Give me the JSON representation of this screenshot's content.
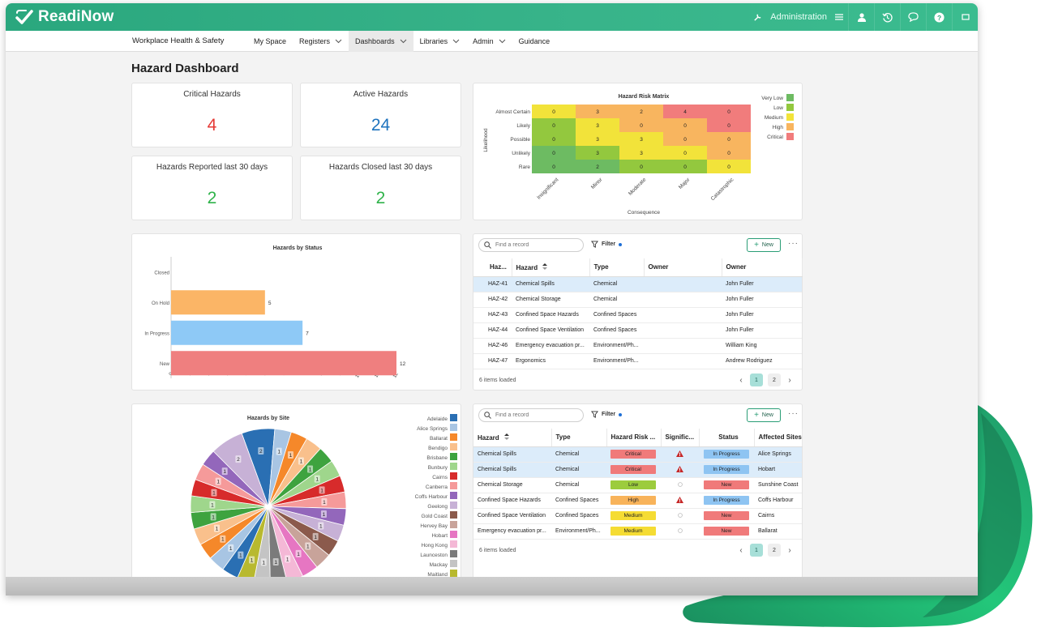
{
  "app": {
    "brand": "ReadiNow",
    "admin_label": "Administration"
  },
  "nav": {
    "app_name": "Workplace Health & Safety",
    "items": [
      {
        "label": "My Space",
        "dropdown": false,
        "active": false
      },
      {
        "label": "Registers",
        "dropdown": true,
        "active": false
      },
      {
        "label": "Dashboards",
        "dropdown": true,
        "active": true
      },
      {
        "label": "Libraries",
        "dropdown": true,
        "active": false
      },
      {
        "label": "Admin",
        "dropdown": true,
        "active": false
      },
      {
        "label": "Guidance",
        "dropdown": false,
        "active": false
      }
    ]
  },
  "page": {
    "title": "Hazard Dashboard"
  },
  "kpis": [
    {
      "label": "Critical Hazards",
      "value": "4",
      "color": "#e53935"
    },
    {
      "label": "Active Hazards",
      "value": "24",
      "color": "#1e73be"
    },
    {
      "label": "Hazards Reported last 30 days",
      "value": "2",
      "color": "#2fb34a"
    },
    {
      "label": "Hazards Closed last 30 days",
      "value": "2",
      "color": "#2fb34a"
    }
  ],
  "risk_matrix": {
    "title": "Hazard Risk Matrix",
    "ylabel": "Likelihood",
    "xlabel": "Consequence",
    "rows": [
      "Almost Certain",
      "Likely",
      "Possible",
      "Unlikely",
      "Rare"
    ],
    "cols": [
      "Insignificant",
      "Minor",
      "Moderate",
      "Major",
      "Catastrophic"
    ],
    "values": [
      [
        0,
        3,
        2,
        4,
        0
      ],
      [
        0,
        3,
        0,
        0,
        0
      ],
      [
        0,
        3,
        3,
        0,
        0
      ],
      [
        0,
        3,
        3,
        0,
        0
      ],
      [
        0,
        2,
        0,
        0,
        0
      ]
    ],
    "levels": [
      [
        "yellow",
        "orange",
        "orange",
        "red",
        "red"
      ],
      [
        "green",
        "yellow",
        "orange",
        "orange",
        "red"
      ],
      [
        "green",
        "yellow",
        "yellow",
        "orange",
        "orange"
      ],
      [
        "dkgreen",
        "green",
        "yellow",
        "yellow",
        "orange"
      ],
      [
        "dkgreen",
        "dkgreen",
        "green",
        "green",
        "yellow"
      ]
    ],
    "level_colors": {
      "dkgreen": "#6dbb62",
      "green": "#93c83e",
      "yellow": "#f2e33a",
      "orange": "#f8b55f",
      "red": "#f17c7c"
    },
    "legend": [
      {
        "label": "Very Low",
        "color": "#6dbb62"
      },
      {
        "label": "Low",
        "color": "#93c83e"
      },
      {
        "label": "Medium",
        "color": "#f2e33a"
      },
      {
        "label": "High",
        "color": "#f8b55f"
      },
      {
        "label": "Critical",
        "color": "#f17c7c"
      }
    ]
  },
  "chart_data": [
    {
      "type": "bar",
      "orientation": "horizontal",
      "title": "Hazards by Status",
      "categories": [
        "Closed",
        "On Hold",
        "In Progress",
        "New"
      ],
      "values": [
        0,
        5,
        7,
        12
      ],
      "colors": [
        "#9e9e9e",
        "#fbb566",
        "#8ec9f6",
        "#ef7f7f"
      ],
      "xlim": [
        0,
        12
      ],
      "ticks": [
        "0",
        "1",
        "2",
        "3",
        "4",
        "5",
        "6",
        "7",
        "8",
        "9",
        "10",
        "11",
        "12"
      ]
    },
    {
      "type": "pie",
      "title": "Hazards by Site",
      "legend_position": "right",
      "slices": [
        {
          "label": "Adelaide",
          "value": 2,
          "color": "#2a6fb3"
        },
        {
          "label": "Alice Springs",
          "value": 1,
          "color": "#a8c5e3"
        },
        {
          "label": "Ballarat",
          "value": 1,
          "color": "#f5882a"
        },
        {
          "label": "Bendigo",
          "value": 1,
          "color": "#f9c08c"
        },
        {
          "label": "Brisbane",
          "value": 1,
          "color": "#3ea33f"
        },
        {
          "label": "Bunbury",
          "value": 1,
          "color": "#9fd68c"
        },
        {
          "label": "Cairns",
          "value": 1,
          "color": "#d72b2b"
        },
        {
          "label": "Canberra",
          "value": 1,
          "color": "#f59a9a"
        },
        {
          "label": "Coffs Harbour",
          "value": 1,
          "color": "#9367bb"
        },
        {
          "label": "Geelong",
          "value": 1,
          "color": "#c7b1d6"
        },
        {
          "label": "Gold Coast",
          "value": 1,
          "color": "#8b5a4c"
        },
        {
          "label": "Hervey Bay",
          "value": 1,
          "color": "#c8a39a"
        },
        {
          "label": "Hobart",
          "value": 1,
          "color": "#e676c2"
        },
        {
          "label": "Hong Kong",
          "value": 1,
          "color": "#f4b8d6"
        },
        {
          "label": "Launceston",
          "value": 1,
          "color": "#7b7b7b"
        },
        {
          "label": "Mackay",
          "value": 1,
          "color": "#c4c4c4"
        },
        {
          "label": "Maitland",
          "value": 1,
          "color": "#b8b92f"
        }
      ],
      "pie_visible_values": [
        "2",
        "1",
        "1",
        "1",
        "1",
        "1",
        "1",
        "1",
        "1",
        "1",
        "1",
        "1",
        "1",
        "1",
        "1",
        "1",
        "1",
        "1",
        "1",
        "1",
        "1",
        "1",
        "1",
        "1",
        "1",
        "1",
        "2"
      ]
    }
  ],
  "hazard_grid": {
    "search_placeholder": "Find a record",
    "filter_label": "Filter",
    "new_label": "New",
    "columns": [
      "Haz...",
      "Hazard",
      "Type",
      "Owner",
      "Owner"
    ],
    "rows": [
      [
        "HAZ-41",
        "Chemical Spills",
        "Chemical",
        "",
        "John Fuller"
      ],
      [
        "HAZ-42",
        "Chemical Storage",
        "Chemical",
        "",
        "John Fuller"
      ],
      [
        "HAZ-43",
        "Confined Space Hazards",
        "Confined Spaces",
        "",
        "John Fuller"
      ],
      [
        "HAZ-44",
        "Confined Space Ventilation",
        "Confined Spaces",
        "",
        "John Fuller"
      ],
      [
        "HAZ-46",
        "Emergency evacuation pr...",
        "Environment/Ph...",
        "",
        "William King"
      ],
      [
        "HAZ-47",
        "Ergonomics",
        "Environment/Ph...",
        "",
        "Andrew Rodriguez"
      ]
    ],
    "footer": "6 items loaded",
    "pages": [
      "1",
      "2"
    ]
  },
  "risk_grid": {
    "search_placeholder": "Find a record",
    "filter_label": "Filter",
    "new_label": "New",
    "columns": [
      "Hazard",
      "Type",
      "Hazard Risk ...",
      "Signific...",
      "Status",
      "Affected Sites"
    ],
    "rows": [
      {
        "hazard": "Chemical Spills",
        "type": "Chemical",
        "risk": "Critical",
        "significant": true,
        "status": "In Progress",
        "site": "Alice Springs"
      },
      {
        "hazard": "Chemical Spills",
        "type": "Chemical",
        "risk": "Critical",
        "significant": true,
        "status": "In Progress",
        "site": "Hobart"
      },
      {
        "hazard": "Chemical Storage",
        "type": "Chemical",
        "risk": "Low",
        "significant": false,
        "status": "New",
        "site": "Sunshine Coast"
      },
      {
        "hazard": "Confined Space Hazards",
        "type": "Confined Spaces",
        "risk": "High",
        "significant": true,
        "status": "In Progress",
        "site": "Coffs Harbour"
      },
      {
        "hazard": "Confined Space Ventilation",
        "type": "Confined Spaces",
        "risk": "Medium",
        "significant": false,
        "status": "New",
        "site": "Cairns"
      },
      {
        "hazard": "Emergency evacuation pr...",
        "type": "Environment/Ph...",
        "risk": "Medium",
        "significant": false,
        "status": "New",
        "site": "Ballarat"
      }
    ],
    "risk_colors": {
      "Critical": "#f07a7a",
      "Low": "#9ccc3d",
      "High": "#f8b35a",
      "Medium": "#f5dc33"
    },
    "status_colors": {
      "In Progress": "#8ec4f2",
      "New": "#f07a7a"
    },
    "footer": "6 items loaded",
    "pages": [
      "1",
      "2"
    ]
  }
}
